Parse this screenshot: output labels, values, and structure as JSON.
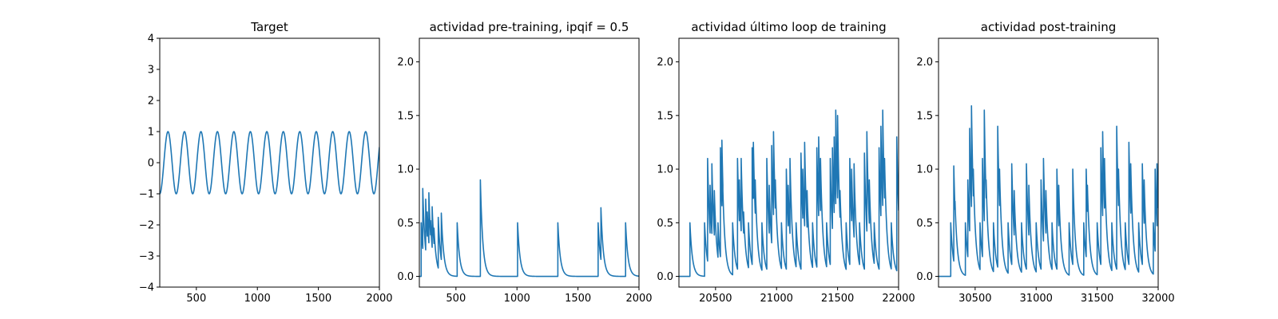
{
  "chart_data": [
    {
      "type": "line",
      "title": "Target",
      "xlim": [
        200,
        2000
      ],
      "ylim": [
        -4,
        4
      ],
      "xticks": [
        500,
        1000,
        1500,
        2000
      ],
      "yticks": [
        -4,
        -3,
        -2,
        -1,
        0,
        1,
        2,
        3,
        4
      ],
      "ytick_labels": [
        "−4",
        "−3",
        "−2",
        "−1",
        "0",
        "1",
        "2",
        "3",
        "4"
      ],
      "line_color": "#1f77b4",
      "series": [
        {
          "kind": "sine",
          "x_start": 200,
          "x_end": 2000,
          "period": 135,
          "amplitude": 1,
          "phase_start_value": -1
        }
      ]
    },
    {
      "type": "line",
      "title": "actividad pre-training, ipqif = 0.5",
      "xlim": [
        200,
        2000
      ],
      "ylim": [
        -0.1,
        2.22
      ],
      "xticks": [
        500,
        1000,
        1500,
        2000
      ],
      "yticks": [
        0.0,
        0.5,
        1.0,
        1.5,
        2.0
      ],
      "ytick_labels": [
        "0.0",
        "0.5",
        "1.0",
        "1.5",
        "2.0"
      ],
      "line_color": "#1f77b4",
      "series": [
        {
          "kind": "spikes",
          "x_start": 200,
          "x_end": 2000,
          "decay": 20,
          "spikes": [
            [
              215,
              0.5
            ],
            [
              228,
              0.82
            ],
            [
              240,
              0.45
            ],
            [
              252,
              0.72
            ],
            [
              265,
              0.6
            ],
            [
              278,
              0.78
            ],
            [
              292,
              0.52
            ],
            [
              305,
              0.65
            ],
            [
              320,
              0.45
            ],
            [
              355,
              0.55
            ],
            [
              380,
              0.59
            ],
            [
              510,
              0.5
            ],
            [
              700,
              0.9
            ],
            [
              1005,
              0.5
            ],
            [
              1335,
              0.5
            ],
            [
              1665,
              0.5
            ],
            [
              1688,
              0.64
            ],
            [
              1890,
              0.5
            ]
          ]
        }
      ]
    },
    {
      "type": "line",
      "title": "actividad último loop de training",
      "xlim": [
        20200,
        22000
      ],
      "ylim": [
        -0.1,
        2.22
      ],
      "xticks": [
        20500,
        21000,
        21500,
        22000
      ],
      "yticks": [
        0.0,
        0.5,
        1.0,
        1.5,
        2.0
      ],
      "ytick_labels": [
        "0.0",
        "0.5",
        "1.0",
        "1.5",
        "2.0"
      ],
      "line_color": "#1f77b4",
      "series": [
        {
          "kind": "spikes",
          "x_start": 20200,
          "x_end": 22000,
          "decay": 20,
          "spikes": [
            [
              20290,
              0.5
            ],
            [
              20410,
              0.5
            ],
            [
              20435,
              1.1
            ],
            [
              20455,
              0.85
            ],
            [
              20470,
              1.05
            ],
            [
              20490,
              0.8
            ],
            [
              20520,
              0.5
            ],
            [
              20540,
              1.2
            ],
            [
              20552,
              1.27
            ],
            [
              20560,
              0.8
            ],
            [
              20640,
              0.5
            ],
            [
              20680,
              1.1
            ],
            [
              20695,
              0.9
            ],
            [
              20710,
              1.1
            ],
            [
              20730,
              0.6
            ],
            [
              20770,
              0.5
            ],
            [
              20800,
              1.2
            ],
            [
              20810,
              1.25
            ],
            [
              20825,
              0.9
            ],
            [
              20880,
              0.5
            ],
            [
              20920,
              1.1
            ],
            [
              20940,
              0.85
            ],
            [
              20960,
              1.22
            ],
            [
              20975,
              1.35
            ],
            [
              20990,
              0.9
            ],
            [
              21040,
              0.5
            ],
            [
              21080,
              1.0
            ],
            [
              21095,
              0.85
            ],
            [
              21110,
              1.1
            ],
            [
              21160,
              0.5
            ],
            [
              21200,
              1.15
            ],
            [
              21215,
              1.0
            ],
            [
              21230,
              1.25
            ],
            [
              21250,
              0.8
            ],
            [
              21295,
              0.5
            ],
            [
              21330,
              1.2
            ],
            [
              21345,
              1.3
            ],
            [
              21360,
              1.1
            ],
            [
              21410,
              0.5
            ],
            [
              21440,
              1.1
            ],
            [
              21458,
              1.2
            ],
            [
              21472,
              1.3
            ],
            [
              21485,
              1.55
            ],
            [
              21500,
              1.5
            ],
            [
              21520,
              0.8
            ],
            [
              21570,
              0.5
            ],
            [
              21600,
              1.1
            ],
            [
              21615,
              1.0
            ],
            [
              21635,
              1.05
            ],
            [
              21680,
              0.5
            ],
            [
              21720,
              1.15
            ],
            [
              21740,
              1.35
            ],
            [
              21760,
              0.9
            ],
            [
              21800,
              0.5
            ],
            [
              21840,
              1.2
            ],
            [
              21855,
              1.4
            ],
            [
              21870,
              1.55
            ],
            [
              21885,
              1.1
            ],
            [
              21940,
              0.5
            ],
            [
              21985,
              1.3
            ]
          ]
        }
      ]
    },
    {
      "type": "line",
      "title": "actividad post-training",
      "xlim": [
        30200,
        32000
      ],
      "ylim": [
        -0.1,
        2.22
      ],
      "xticks": [
        30500,
        31000,
        31500,
        32000
      ],
      "yticks": [
        0.0,
        0.5,
        1.0,
        1.5,
        2.0
      ],
      "ytick_labels": [
        "0.0",
        "0.5",
        "1.0",
        "1.5",
        "2.0"
      ],
      "line_color": "#1f77b4",
      "series": [
        {
          "kind": "spikes",
          "x_start": 30200,
          "x_end": 32000,
          "decay": 20,
          "spikes": [
            [
              30300,
              0.5
            ],
            [
              30325,
              1.03
            ],
            [
              30335,
              0.7
            ],
            [
              30420,
              0.5
            ],
            [
              30440,
              0.9
            ],
            [
              30455,
              1.38
            ],
            [
              30470,
              1.59
            ],
            [
              30485,
              1.0
            ],
            [
              30540,
              0.5
            ],
            [
              30560,
              1.1
            ],
            [
              30575,
              1.55
            ],
            [
              30590,
              0.9
            ],
            [
              30650,
              0.5
            ],
            [
              30685,
              1.4
            ],
            [
              30700,
              1.0
            ],
            [
              30770,
              0.5
            ],
            [
              30800,
              1.05
            ],
            [
              30820,
              0.8
            ],
            [
              30880,
              0.5
            ],
            [
              30920,
              1.05
            ],
            [
              30940,
              0.85
            ],
            [
              31000,
              0.5
            ],
            [
              31040,
              0.9
            ],
            [
              31060,
              1.1
            ],
            [
              31080,
              0.8
            ],
            [
              31130,
              0.5
            ],
            [
              31170,
              1.0
            ],
            [
              31185,
              0.85
            ],
            [
              31270,
              0.5
            ],
            [
              31300,
              1.0
            ],
            [
              31390,
              0.5
            ],
            [
              31410,
              1.0
            ],
            [
              31420,
              0.85
            ],
            [
              31500,
              0.5
            ],
            [
              31530,
              1.2
            ],
            [
              31545,
              1.35
            ],
            [
              31560,
              1.1
            ],
            [
              31620,
              0.5
            ],
            [
              31660,
              1.4
            ],
            [
              31675,
              1.0
            ],
            [
              31730,
              0.5
            ],
            [
              31760,
              1.25
            ],
            [
              31775,
              1.05
            ],
            [
              31840,
              0.5
            ],
            [
              31870,
              1.05
            ],
            [
              31885,
              0.9
            ],
            [
              31960,
              0.5
            ],
            [
              31975,
              1.0
            ],
            [
              31990,
              1.05
            ]
          ]
        }
      ]
    }
  ]
}
